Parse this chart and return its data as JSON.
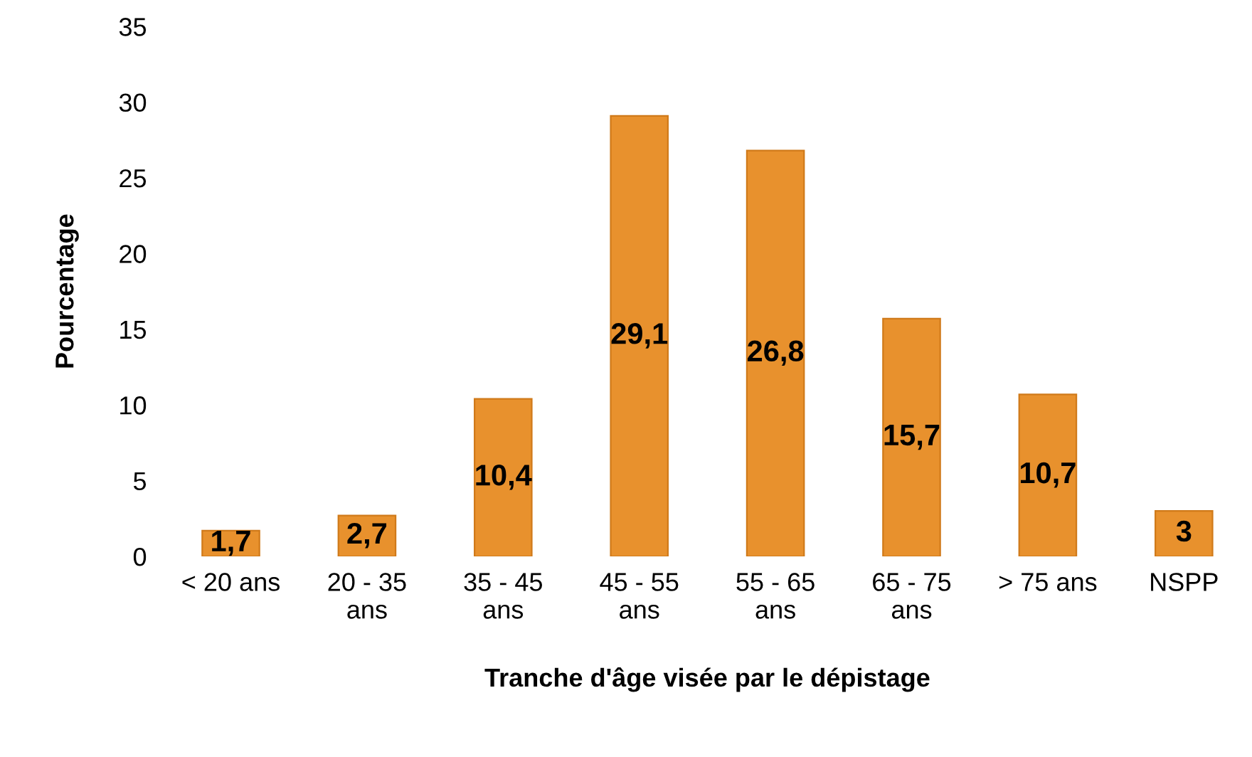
{
  "chart_data": {
    "type": "bar",
    "xlabel": "Tranche d'âge visée par le dépistage",
    "ylabel": "Pourcentage",
    "categories": [
      "< 20 ans",
      "20 - 35 ans",
      "35 - 45 ans",
      "45 - 55 ans",
      "55 - 65 ans",
      "65 - 75 ans",
      "> 75 ans",
      "NSPP"
    ],
    "values": [
      1.7,
      2.7,
      10.4,
      29.1,
      26.8,
      15.7,
      10.7,
      3
    ],
    "value_labels": [
      "1,7",
      "2,7",
      "10,4",
      "29,1",
      "26,8",
      "15,7",
      "10,7",
      "3"
    ],
    "color": "#e8912d",
    "ylim": [
      0,
      35
    ],
    "yticks": [
      0,
      5,
      10,
      15,
      20,
      25,
      30,
      35
    ],
    "grid": false,
    "legend": false
  }
}
